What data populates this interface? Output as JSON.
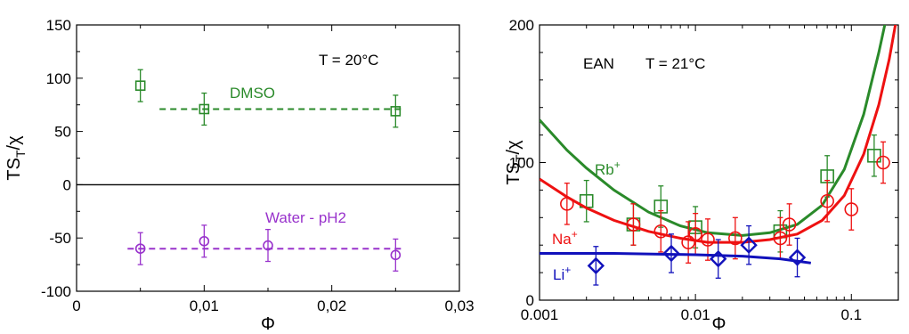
{
  "chart_data": [
    {
      "type": "scatter",
      "panel": "left",
      "xlabel_main": "Φ",
      "ylabel_main": "TS",
      "ylabel_sub": "T",
      "ylabel_rest": "/χ",
      "xlim": [
        0,
        0.03
      ],
      "ylim": [
        -100,
        150
      ],
      "x_ticks": [
        0,
        0.01,
        0.02,
        0.03
      ],
      "x_tick_labels": [
        "0",
        "0,01",
        "0,02",
        "0,03"
      ],
      "y_ticks": [
        -100,
        -50,
        0,
        50,
        100,
        150
      ],
      "y_tick_labels": [
        "-100",
        "-50",
        "0",
        "50",
        "100",
        "150"
      ],
      "annotation": "T = 20°C",
      "zero_line": true,
      "series": [
        {
          "name": "DMSO",
          "color": "#2a8a2a",
          "marker": "square",
          "x": [
            0.005,
            0.01,
            0.025
          ],
          "y": [
            93,
            71,
            69
          ],
          "err": [
            15,
            15,
            15
          ],
          "fit": {
            "x": [
              0.0065,
              0.0255
            ],
            "y": [
              71,
              71
            ]
          }
        },
        {
          "name": "Water - pH2",
          "color": "#9933cc",
          "marker": "circle",
          "x": [
            0.005,
            0.01,
            0.015,
            0.025
          ],
          "y": [
            -60,
            -53,
            -57,
            -66
          ],
          "err": [
            15,
            15,
            15,
            15
          ],
          "fit": {
            "x": [
              0.004,
              0.0255
            ],
            "y": [
              -60,
              -60
            ]
          }
        }
      ]
    },
    {
      "type": "scatter",
      "panel": "right",
      "xscale": "log",
      "xlabel_main": "Φ",
      "ylabel_main": "TS",
      "ylabel_sub": "T",
      "ylabel_rest": "/χ",
      "xlim": [
        0.001,
        0.2
      ],
      "ylim": [
        0,
        200
      ],
      "x_ticks": [
        0.001,
        0.01,
        0.1
      ],
      "x_tick_labels": [
        "0.001",
        "0.01",
        "0.1"
      ],
      "y_ticks": [
        0,
        100,
        200
      ],
      "y_tick_labels": [
        "0",
        "100",
        "200"
      ],
      "annotation_left": "EAN",
      "annotation_right": "T = 21°C",
      "series": [
        {
          "name": "Rb",
          "sup": "+",
          "color": "#2a8a2a",
          "marker": "square",
          "x": [
            0.002,
            0.004,
            0.006,
            0.01,
            0.035,
            0.07,
            0.14
          ],
          "y": [
            72,
            55,
            68,
            53,
            50,
            90,
            105
          ],
          "err": [
            15,
            15,
            15,
            15,
            15,
            15,
            15
          ],
          "fit": {
            "x": [
              0.001,
              0.0015,
              0.002,
              0.003,
              0.005,
              0.008,
              0.012,
              0.02,
              0.03,
              0.045,
              0.065,
              0.09,
              0.12,
              0.15,
              0.175,
              0.2
            ],
            "y": [
              131,
              109,
              96,
              80,
              64,
              54,
              49,
              47,
              49,
              55,
              69,
              95,
              135,
              180,
              215,
              250
            ]
          }
        },
        {
          "name": "Na",
          "sup": "+",
          "color": "#ee1111",
          "marker": "circle",
          "x": [
            0.0015,
            0.004,
            0.006,
            0.009,
            0.01,
            0.012,
            0.018,
            0.035,
            0.04,
            0.07,
            0.1,
            0.16
          ],
          "y": [
            70,
            55,
            50,
            42,
            48,
            44,
            45,
            45,
            55,
            72,
            66,
            100
          ],
          "err": [
            15,
            15,
            15,
            15,
            15,
            15,
            15,
            15,
            15,
            15,
            15,
            15
          ],
          "fit": {
            "x": [
              0.001,
              0.0015,
              0.002,
              0.003,
              0.005,
              0.008,
              0.012,
              0.02,
              0.03,
              0.045,
              0.065,
              0.09,
              0.12,
              0.15,
              0.175,
              0.2
            ],
            "y": [
              88,
              75,
              67,
              58,
              50,
              45,
              42,
              42,
              44,
              48,
              58,
              76,
              106,
              142,
              175,
              212
            ]
          }
        },
        {
          "name": "Li",
          "sup": "+",
          "color": "#1111bb",
          "marker": "diamond",
          "x": [
            0.0023,
            0.007,
            0.014,
            0.022,
            0.045
          ],
          "y": [
            25,
            34,
            30,
            40,
            31
          ],
          "err": [
            14,
            14,
            14,
            14,
            14
          ],
          "fit": {
            "x": [
              0.001,
              0.003,
              0.01,
              0.02,
              0.035,
              0.055
            ],
            "y": [
              34,
              34,
              33,
              32,
              30,
              27
            ]
          }
        }
      ]
    }
  ]
}
